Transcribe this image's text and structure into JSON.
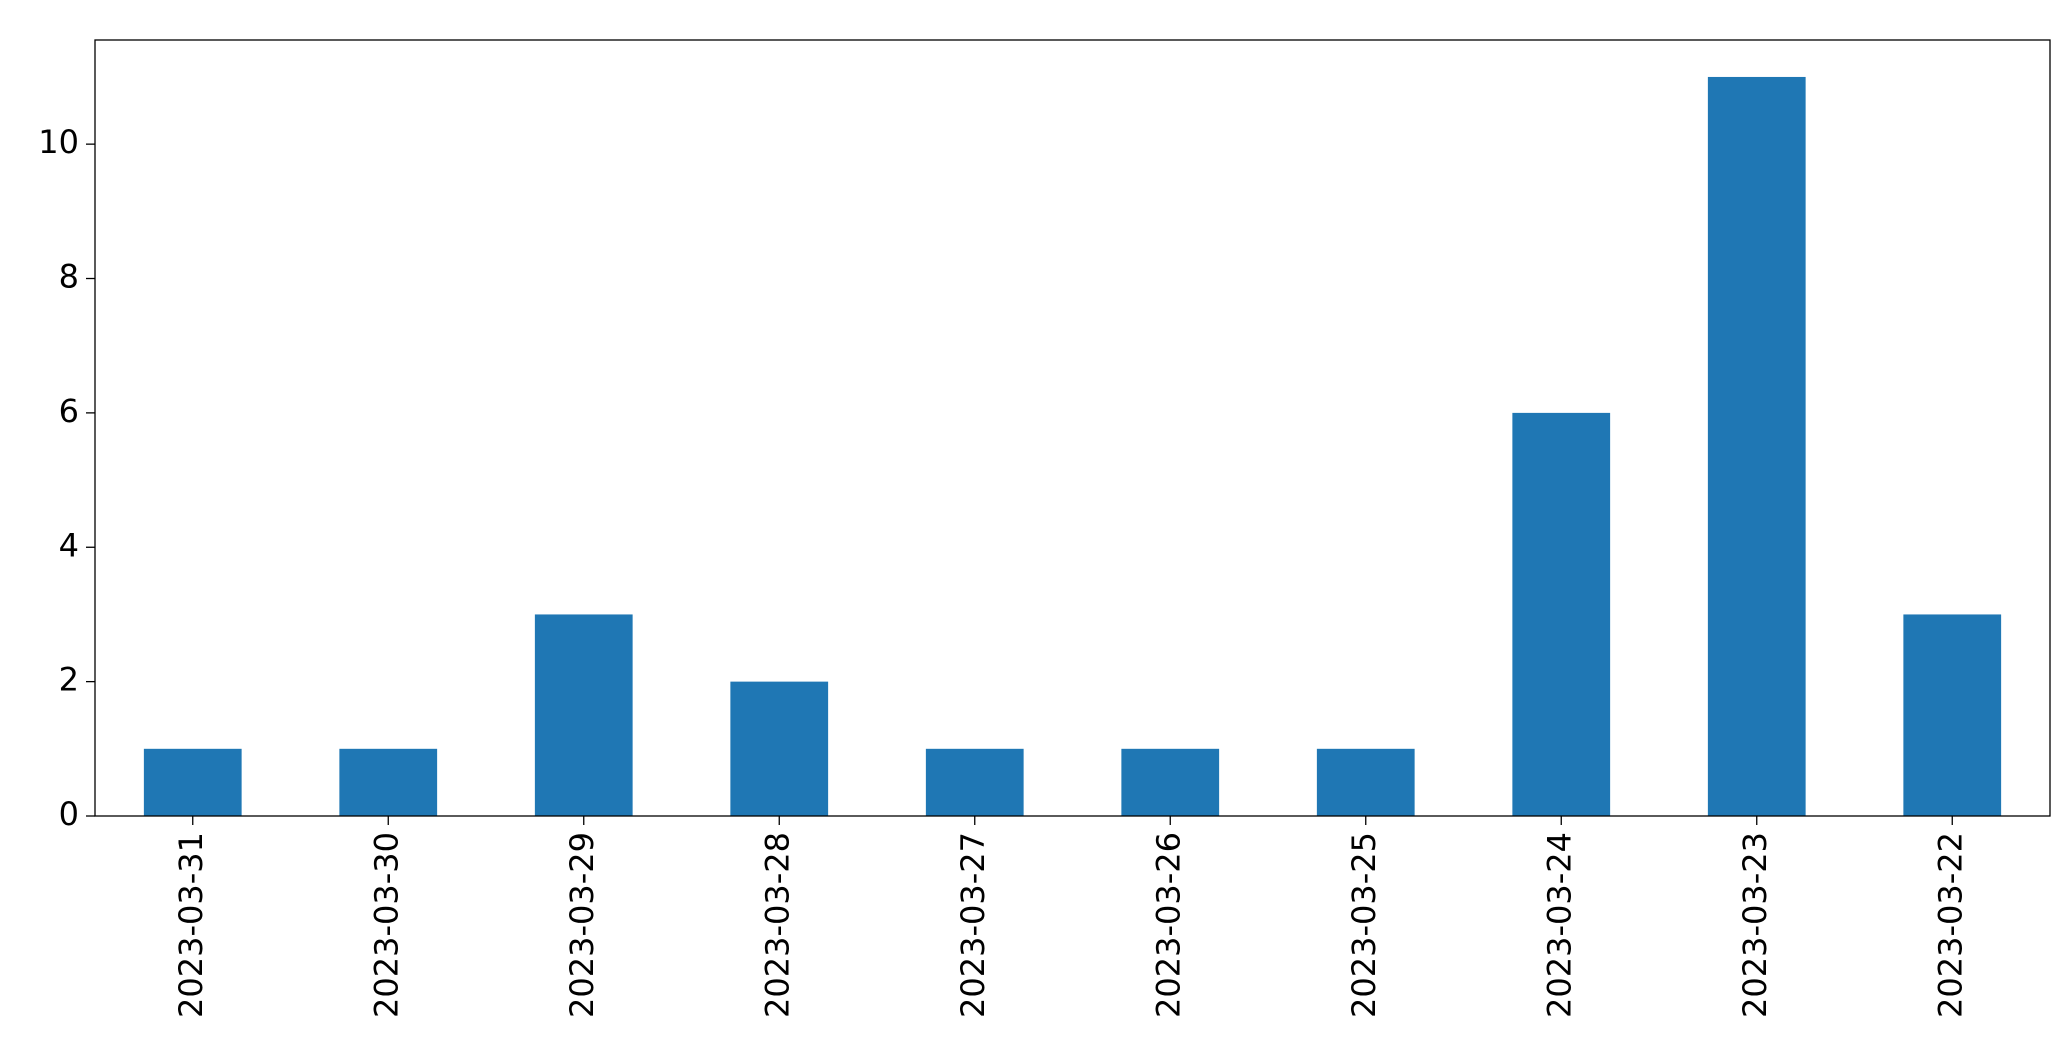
{
  "chart_data": {
    "type": "bar",
    "categories": [
      "2023-03-31",
      "2023-03-30",
      "2023-03-29",
      "2023-03-28",
      "2023-03-27",
      "2023-03-26",
      "2023-03-25",
      "2023-03-24",
      "2023-03-23",
      "2023-03-22"
    ],
    "values": [
      1,
      1,
      3,
      2,
      1,
      1,
      1,
      6,
      11,
      3
    ],
    "color": "#1f77b4",
    "ylim": [
      0,
      11.55
    ],
    "yticks": [
      0,
      2,
      4,
      6,
      8,
      10
    ],
    "grid": false
  }
}
